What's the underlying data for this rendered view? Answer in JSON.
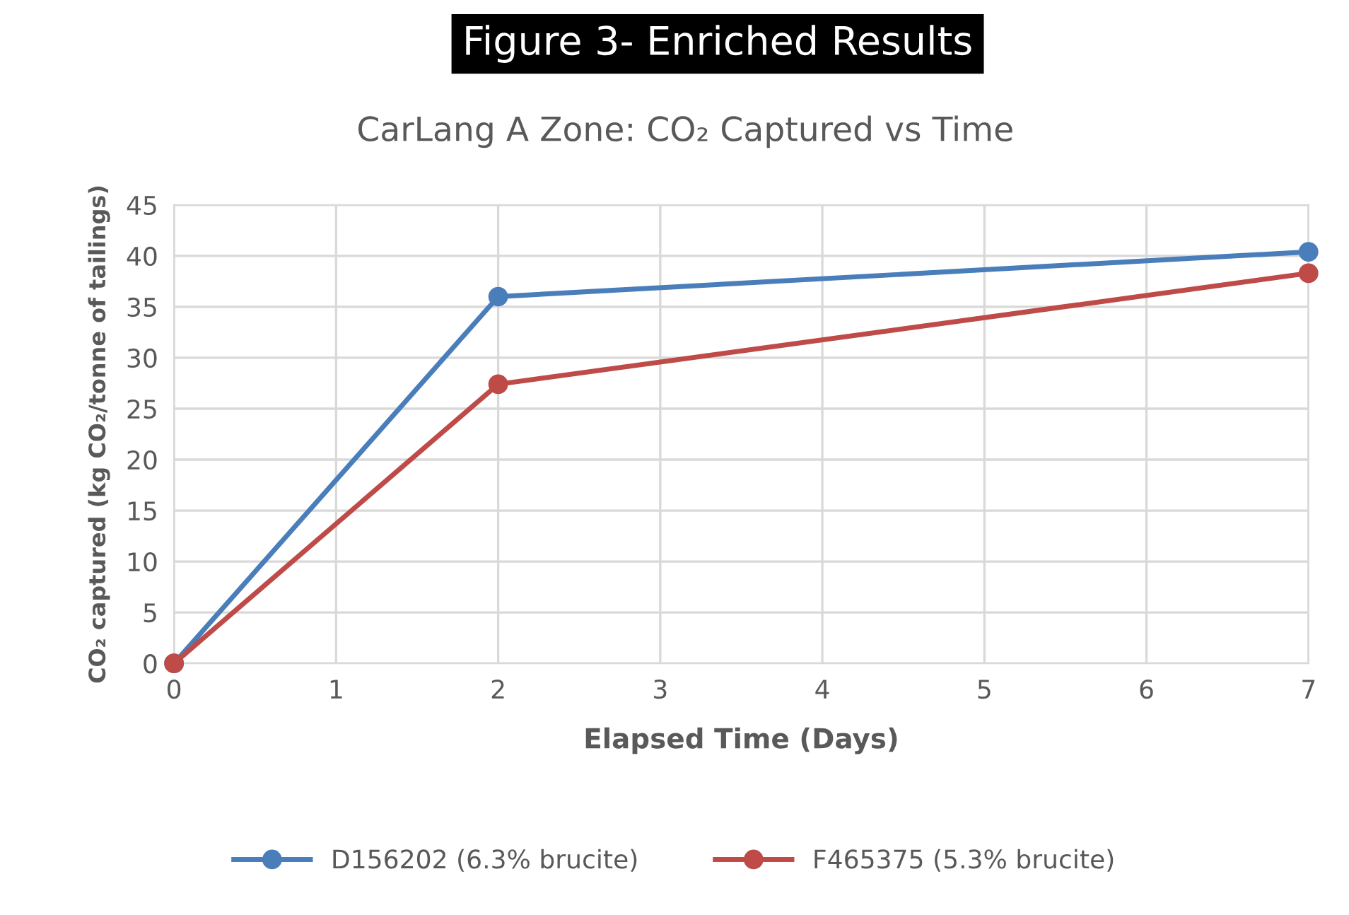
{
  "chart_data": {
    "type": "line",
    "title": "Figure 3- Enriched Results",
    "subtitle": "CarLang A Zone: CO₂ Captured vs Time",
    "xlabel": "Elapsed Time (Days)",
    "ylabel": "CO₂ captured (kg CO₂/tonne of tailings)",
    "x": [
      0,
      2,
      7
    ],
    "series": [
      {
        "name": "D156202 (6.3% brucite)",
        "color": "#4a7ebb",
        "values": [
          0,
          36,
          40.4
        ]
      },
      {
        "name": "F465375 (5.3% brucite)",
        "color": "#be4b48",
        "values": [
          0,
          27.4,
          38.3
        ]
      }
    ],
    "xlim": [
      0,
      7
    ],
    "xticks": [
      0,
      1,
      2,
      3,
      4,
      5,
      6,
      7
    ],
    "ylim": [
      0,
      45
    ],
    "yticks": [
      0,
      5,
      10,
      15,
      20,
      25,
      30,
      35,
      40,
      45
    ],
    "grid": true,
    "legend": "bottom",
    "marker": "circle",
    "line_style": "solid"
  }
}
